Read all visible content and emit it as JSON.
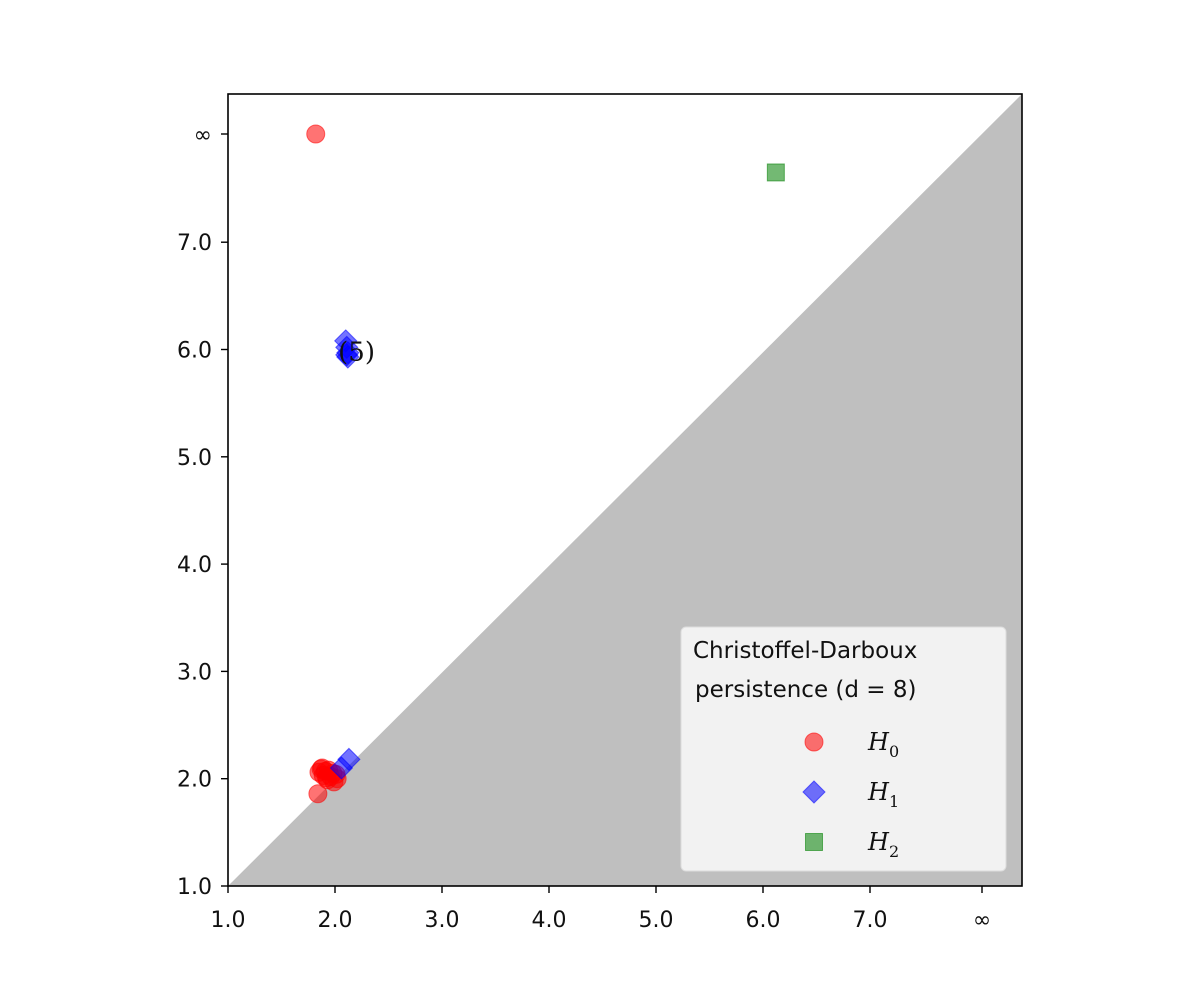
{
  "chart_data": {
    "type": "scatter",
    "title": "",
    "xlabel": "",
    "ylabel": "",
    "xlim": [
      1.0,
      8.0
    ],
    "ylim": [
      1.0,
      8.0
    ],
    "x_ticks": [
      "1.0",
      "2.0",
      "3.0",
      "4.0",
      "5.0",
      "6.0",
      "7.0",
      "∞"
    ],
    "y_ticks": [
      "1.0",
      "2.0",
      "3.0",
      "4.0",
      "5.0",
      "6.0",
      "7.0",
      "∞"
    ],
    "diagonal_shaded": true,
    "shade_color": "#bfbfbf",
    "legend": {
      "title_line1": "Christoffel-Darboux",
      "title_line2": "persistence (d = 8)",
      "placement": "lower-right"
    },
    "annotation": {
      "text": "(5)",
      "x": 2.45,
      "y": 5.98
    },
    "series": [
      {
        "name": "H",
        "sub": "0",
        "marker": "circle",
        "color": "#ff0000",
        "points": [
          {
            "x": 1.82,
            "y": "∞"
          },
          {
            "x": 1.84,
            "y": 1.86
          },
          {
            "x": 1.85,
            "y": 2.06
          },
          {
            "x": 1.87,
            "y": 2.09
          },
          {
            "x": 1.89,
            "y": 2.03
          },
          {
            "x": 1.91,
            "y": 2.07
          },
          {
            "x": 1.93,
            "y": 1.99
          },
          {
            "x": 1.94,
            "y": 2.08
          },
          {
            "x": 1.96,
            "y": 2.02
          },
          {
            "x": 1.98,
            "y": 2.05
          },
          {
            "x": 1.99,
            "y": 1.97
          },
          {
            "x": 2.01,
            "y": 2.04
          },
          {
            "x": 2.02,
            "y": 2.0
          },
          {
            "x": 1.88,
            "y": 2.1
          },
          {
            "x": 1.92,
            "y": 2.01
          }
        ]
      },
      {
        "name": "H",
        "sub": "1",
        "marker": "diamond",
        "color": "#0000ff",
        "points": [
          {
            "x": 2.1,
            "y": 6.08
          },
          {
            "x": 2.11,
            "y": 6.02
          },
          {
            "x": 2.12,
            "y": 5.97
          },
          {
            "x": 2.12,
            "y": 5.93
          },
          {
            "x": 2.11,
            "y": 5.95
          },
          {
            "x": 2.13,
            "y": 2.18
          },
          {
            "x": 2.06,
            "y": 2.1
          }
        ]
      },
      {
        "name": "H",
        "sub": "2",
        "marker": "square",
        "color": "#008000",
        "points": [
          {
            "x": 6.12,
            "y": 7.65
          }
        ]
      }
    ]
  }
}
